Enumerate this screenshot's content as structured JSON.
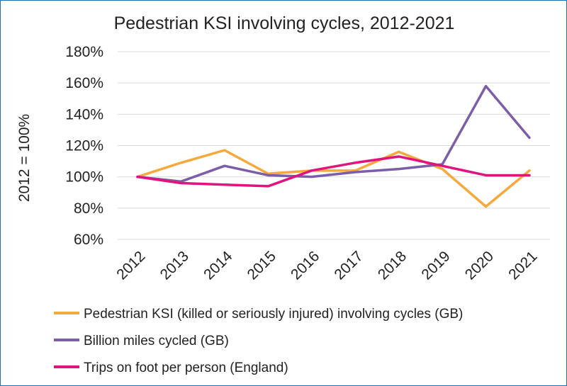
{
  "chart_data": {
    "type": "line",
    "title": "Pedestrian KSI involving cycles, 2012-2021",
    "xlabel": "",
    "ylabel": "2012 = 100%",
    "categories": [
      "2012",
      "2013",
      "2014",
      "2015",
      "2016",
      "2017",
      "2018",
      "2019",
      "2020",
      "2021"
    ],
    "ylim": [
      60,
      180
    ],
    "yticks": [
      60,
      80,
      100,
      120,
      140,
      160,
      180
    ],
    "ytick_labels": [
      "60%",
      "80%",
      "100%",
      "120%",
      "140%",
      "160%",
      "180%"
    ],
    "grid": true,
    "legend_position": "bottom",
    "series": [
      {
        "name": "Pedestrian KSI (killed or seriously injured) involving cycles (GB)",
        "color": "#f5a93b",
        "values": [
          100,
          109,
          117,
          102,
          104,
          104,
          116,
          105,
          81,
          104
        ]
      },
      {
        "name": "Billion miles cycled (GB)",
        "color": "#7b5ea7",
        "values": [
          100,
          97,
          107,
          101,
          100,
          103,
          105,
          108,
          158,
          125
        ]
      },
      {
        "name": "Trips on foot per person (England)",
        "color": "#e0137f",
        "values": [
          100,
          96,
          95,
          94,
          104,
          109,
          113,
          107,
          101,
          101
        ]
      }
    ]
  }
}
